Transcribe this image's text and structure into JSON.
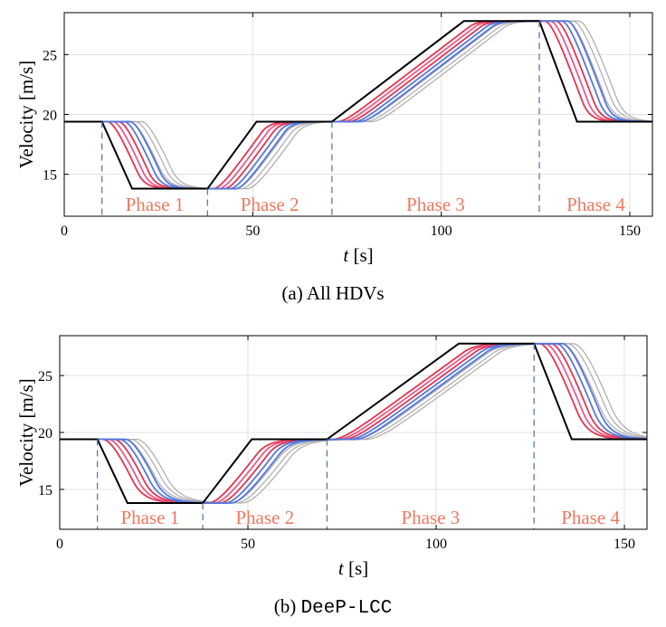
{
  "chart_data": [
    {
      "type": "line",
      "caption_label": "(a)",
      "caption_text": "All HDVs",
      "caption_mono": false,
      "xlabel_var": "t",
      "xlabel_unit": "[s]",
      "ylabel": "Velocity [m/s]",
      "xlim": [
        0,
        156
      ],
      "ylim": [
        11.5,
        28.5
      ],
      "xticks": [
        0,
        50,
        100,
        150
      ],
      "yticks": [
        15,
        20,
        25
      ],
      "grid": true,
      "phase_boundaries": [
        10,
        38,
        71,
        126
      ],
      "phases": [
        {
          "label": "Phase 1",
          "x": 24
        },
        {
          "label": "Phase 2",
          "x": 54.5
        },
        {
          "label": "Phase 3",
          "x": 98.5
        },
        {
          "label": "Phase 4",
          "x": 141
        }
      ],
      "head_vehicle": {
        "points": [
          [
            0,
            19.4
          ],
          [
            10,
            19.4
          ],
          [
            18,
            13.8
          ],
          [
            38,
            13.8
          ],
          [
            51,
            19.4
          ],
          [
            71,
            19.4
          ],
          [
            106,
            27.8
          ],
          [
            126,
            27.8
          ],
          [
            136,
            19.4
          ],
          [
            156,
            19.4
          ]
        ]
      },
      "followers": {
        "delays": [
          1.5,
          3,
          4.5,
          6,
          7.5,
          9
        ],
        "colors": [
          "#e6344a",
          "#e85a8f",
          "#b040c0",
          "#7a62e0",
          "#aaaaaa",
          "#aaaaaa"
        ],
        "extra_gray": 1
      }
    },
    {
      "type": "line",
      "caption_label": "(b)",
      "caption_text": "DeeP-LCC",
      "caption_mono": true,
      "xlabel_var": "t",
      "xlabel_unit": "[s]",
      "ylabel": "Velocity [m/s]",
      "xlim": [
        0,
        156
      ],
      "ylim": [
        11.5,
        28.5
      ],
      "xticks": [
        0,
        50,
        100,
        150
      ],
      "yticks": [
        15,
        20,
        25
      ],
      "grid": true,
      "phase_boundaries": [
        10,
        38,
        71,
        126
      ],
      "phases": [
        {
          "label": "Phase 1",
          "x": 24
        },
        {
          "label": "Phase 2",
          "x": 54.5
        },
        {
          "label": "Phase 3",
          "x": 98.5
        },
        {
          "label": "Phase 4",
          "x": 141
        }
      ],
      "head_vehicle": {
        "points": [
          [
            0,
            19.4
          ],
          [
            10,
            19.4
          ],
          [
            18,
            13.8
          ],
          [
            38,
            13.8
          ],
          [
            51,
            19.4
          ],
          [
            71,
            19.4
          ],
          [
            106,
            27.8
          ],
          [
            126,
            27.8
          ],
          [
            136,
            19.4
          ],
          [
            156,
            19.4
          ]
        ]
      },
      "followers": {
        "delays": [
          1.5,
          3,
          4.5,
          6,
          7.5,
          9
        ],
        "colors": [
          "#e6344a",
          "#e85a8f",
          "#b040c0",
          "#7a62e0",
          "#aaaaaa",
          "#aaaaaa"
        ],
        "extra_gray": 1
      }
    }
  ],
  "colors": {
    "head": "#000000",
    "red": "#e6344a",
    "pink": "#e85a8f",
    "blue": "#5577dd",
    "gray": "#aaaaaa",
    "phase_text": "#f07860",
    "boundary": "#5a7ab0",
    "grid": "#e0e0e0"
  }
}
